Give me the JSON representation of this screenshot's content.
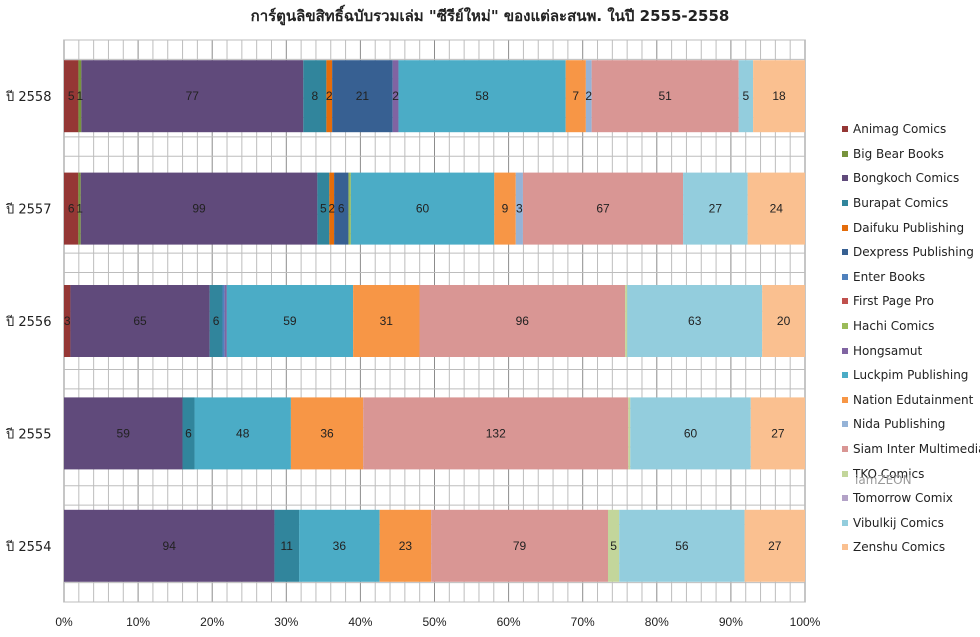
{
  "chart_data": {
    "type": "bar",
    "orientation": "horizontal",
    "stacked": "percent",
    "title": "การ์ตูนลิขสิทธิ์ฉบับรวมเล่ม \"ซีรีย์ใหม่\" ของแต่ละสนพ. ในปี 2555-2558",
    "categories": [
      "ปี 2558",
      "ปี 2557",
      "ปี 2556",
      "ปี 2555",
      "ปี 2554"
    ],
    "x_ticks": [
      "0%",
      "10%",
      "20%",
      "30%",
      "40%",
      "50%",
      "60%",
      "70%",
      "80%",
      "90%",
      "100%"
    ],
    "xlim": [
      0,
      100
    ],
    "grid": true,
    "legend_position": "right",
    "series": [
      {
        "name": "Animag Comics",
        "color": "#953735",
        "values": [
          5,
          6,
          3,
          0,
          0
        ]
      },
      {
        "name": "Big Bear Books",
        "color": "#77933C",
        "values": [
          1,
          1,
          0,
          0,
          0
        ]
      },
      {
        "name": "Bongkoch Comics",
        "color": "#604A7B",
        "values": [
          77,
          99,
          65,
          59,
          94
        ]
      },
      {
        "name": "Burapat Comics",
        "color": "#31859C",
        "values": [
          8,
          5,
          6,
          6,
          11
        ]
      },
      {
        "name": "Daifuku Publishing",
        "color": "#E46C0A",
        "values": [
          2,
          2,
          0,
          0,
          0
        ]
      },
      {
        "name": "Dexpress Publishing",
        "color": "#376092",
        "values": [
          21,
          6,
          0,
          0,
          0
        ]
      },
      {
        "name": "Enter Books",
        "color": "#4F81BD",
        "values": [
          0,
          0,
          1,
          0,
          0
        ]
      },
      {
        "name": "First Page Pro",
        "color": "#C0504D",
        "values": [
          0,
          0,
          0,
          0,
          0
        ]
      },
      {
        "name": "Hachi Comics",
        "color": "#9BBB59",
        "values": [
          0,
          1,
          0,
          0,
          0
        ]
      },
      {
        "name": "Hongsamut",
        "color": "#8064A2",
        "values": [
          2,
          0,
          1,
          0,
          0
        ]
      },
      {
        "name": "Luckpim Publishing",
        "color": "#4BACC6",
        "values": [
          58,
          60,
          59,
          48,
          36
        ]
      },
      {
        "name": "Nation Edutainment",
        "color": "#F79646",
        "values": [
          7,
          9,
          31,
          36,
          23
        ]
      },
      {
        "name": "Nida Publishing",
        "color": "#95B3D7",
        "values": [
          2,
          3,
          0,
          0,
          0
        ]
      },
      {
        "name": "Siam Inter Multimedia",
        "color": "#D99694",
        "values": [
          51,
          67,
          96,
          132,
          79
        ]
      },
      {
        "name": "TKO Comics",
        "color": "#C3D69B",
        "values": [
          0,
          0,
          1,
          1,
          5
        ]
      },
      {
        "name": "Tomorrow Comix",
        "color": "#B3A2C7",
        "values": [
          0,
          0,
          0,
          0,
          0
        ]
      },
      {
        "name": "Vibulkij Comics",
        "color": "#93CDDD",
        "values": [
          5,
          27,
          63,
          60,
          56
        ]
      },
      {
        "name": "Zenshu Comics",
        "color": "#FAC090",
        "values": [
          18,
          24,
          20,
          27,
          27
        ]
      }
    ],
    "segment_labels_shown_min": 2
  },
  "watermark": "iamZEON"
}
